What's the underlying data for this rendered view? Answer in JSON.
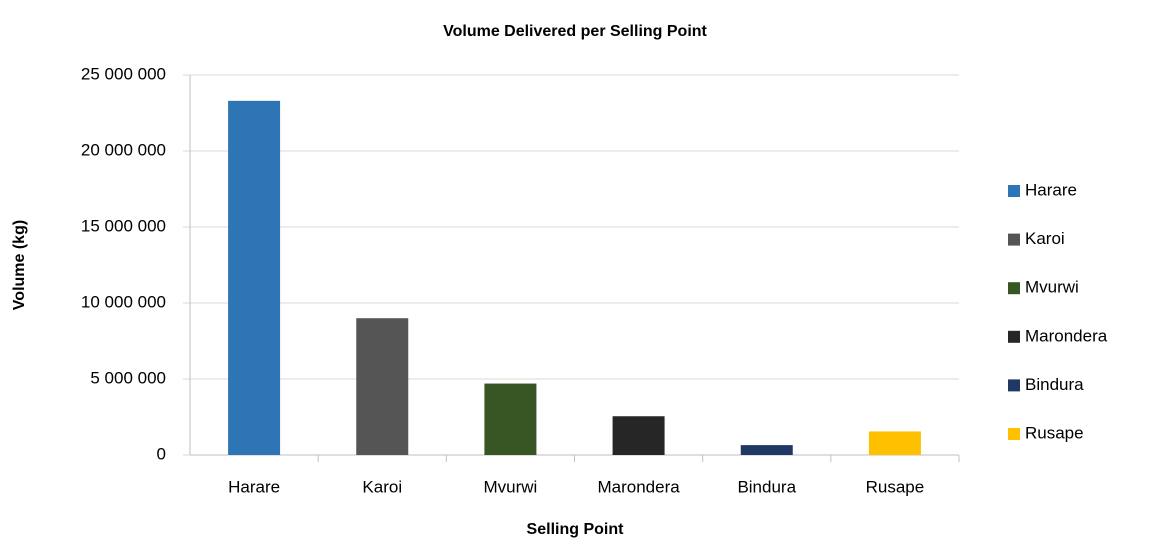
{
  "chart_data": {
    "type": "bar",
    "title": "Volume Delivered per  Selling Point",
    "x_label": "Selling Point",
    "y_label": "Volume (kg)",
    "categories": [
      "Harare",
      "Karoi",
      "Mvurwi",
      "Marondera",
      "Bindura",
      "Rusape"
    ],
    "values": [
      23300000,
      9000000,
      4700000,
      2550000,
      650000,
      1550000
    ],
    "colors": [
      "#2e75b6",
      "#555555",
      "#375623",
      "#262626",
      "#1f3864",
      "#ffc000"
    ],
    "ylim": [
      0,
      25000000
    ],
    "yticks": [
      0,
      {
        "value": 5000000,
        "label": "5 000 000"
      },
      {
        "value": 10000000,
        "label": "10 000 000"
      },
      {
        "value": 15000000,
        "label": "15 000 000"
      },
      {
        "value": 20000000,
        "label": "20 000 000"
      },
      {
        "value": 25000000,
        "label": "25 000 000"
      }
    ],
    "grid": true,
    "legend": "right"
  }
}
